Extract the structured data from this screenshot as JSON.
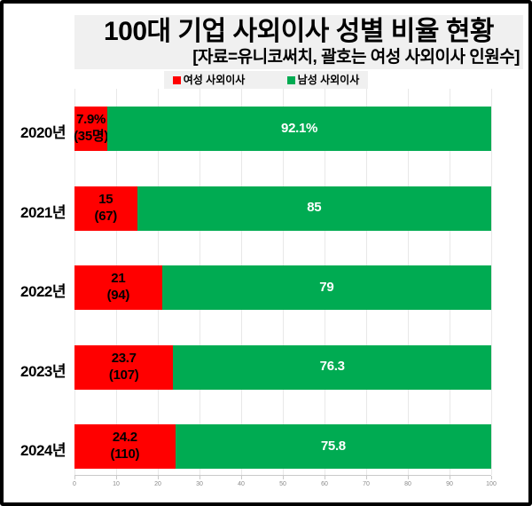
{
  "header": {
    "title": "100대 기업 사외이사 성별 비율 현황",
    "subtitle": "[자료=유니코써치, 괄호는 여성 사외이사 인원수]"
  },
  "legend": {
    "female_label": "여성 사외이사",
    "male_label": "남성 사외이사"
  },
  "colors": {
    "female": "#ff0000",
    "male": "#00ab52",
    "label_on_female": "#000000",
    "label_on_male": "#ffffff",
    "header_bg": "#f0f0f0",
    "grid": "#e8e8e8",
    "axis": "#c9c9c9",
    "tick_text": "#8a8a8a",
    "frame_border": "#000000"
  },
  "chart_data": {
    "type": "bar",
    "orientation": "horizontal",
    "stacked": true,
    "title": "100대 기업 사외이사 성별 비율 현황",
    "subtitle": "[자료=유니코써치, 괄호는 여성 사외이사 인원수]",
    "categories": [
      "2020년",
      "2021년",
      "2022년",
      "2023년",
      "2024년"
    ],
    "series": [
      {
        "name": "여성 사외이사",
        "color": "#ff0000",
        "values": [
          7.9,
          15,
          21,
          23.7,
          24.2
        ],
        "value_labels": [
          [
            "7.9%",
            "(35명)"
          ],
          [
            "15",
            "(67)"
          ],
          [
            "21",
            "(94)"
          ],
          [
            "23.7",
            "(107)"
          ],
          [
            "24.2",
            "(110)"
          ]
        ]
      },
      {
        "name": "남성 사외이사",
        "color": "#00ab52",
        "values": [
          92.1,
          85,
          79,
          76.3,
          75.8
        ],
        "value_labels": [
          [
            "92.1%"
          ],
          [
            "85"
          ],
          [
            "79"
          ],
          [
            "76.3"
          ],
          [
            "75.8"
          ]
        ]
      }
    ],
    "xlim": [
      0,
      100
    ],
    "xticks": [
      0,
      10,
      20,
      30,
      40,
      50,
      60,
      70,
      80,
      90,
      100
    ],
    "grid": true,
    "legend_position": "top-center"
  }
}
